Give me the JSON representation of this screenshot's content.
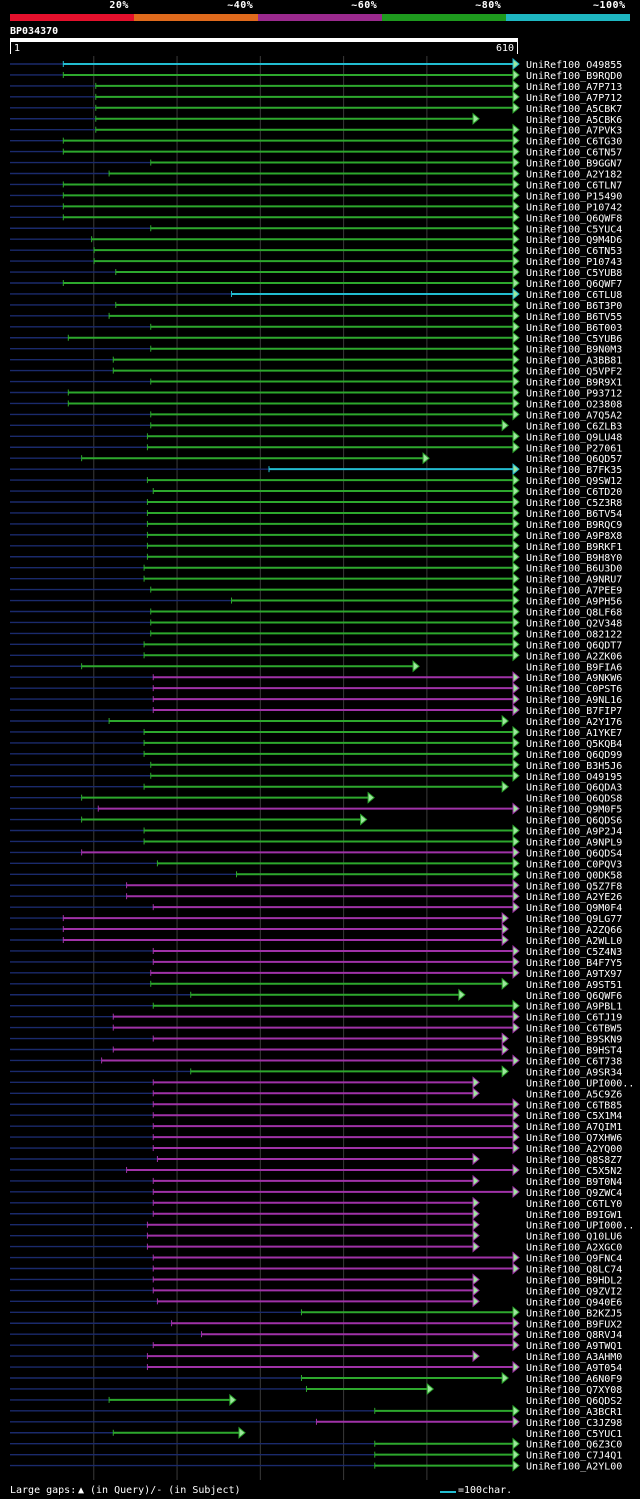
{
  "query": {
    "id": "BP034370",
    "start": "1",
    "end": "610",
    "length": 610
  },
  "legend": [
    {
      "label": "20%",
      "color": "#e4102c"
    },
    {
      "label": "~40%",
      "color": "#e06a1c"
    },
    {
      "label": "~60%",
      "color": "#9b2a8e"
    },
    {
      "label": "~80%",
      "color": "#1e9a1e"
    },
    {
      "label": "~100%",
      "color": "#1eb7c2"
    }
  ],
  "colors": {
    "cyan": "#22bcd0",
    "green": "#2da82d",
    "purple": "#a032a8",
    "navy": "#1a2a6c",
    "grid": "#3a3a3a"
  },
  "footer": {
    "gaps_label": "Large gaps:",
    "query_marker": "▲",
    "query_text": "(in Query)/- (in Subject)",
    "scale_text": "=100char."
  },
  "hits": [
    {
      "label": "UniRef100_O49855",
      "color": "cyan",
      "start": 64,
      "end": 610,
      "arrow": true
    },
    {
      "label": "UniRef100_B9RQD0",
      "color": "green",
      "start": 64,
      "end": 610,
      "arrow": true
    },
    {
      "label": "UniRef100_A7P713",
      "color": "green",
      "start": 103,
      "end": 610,
      "arrow": true
    },
    {
      "label": "UniRef100_A7P712",
      "color": "green",
      "start": 103,
      "end": 610,
      "arrow": true
    },
    {
      "label": "UniRef100_A5CBK7",
      "color": "green",
      "start": 103,
      "end": 610,
      "arrow": true
    },
    {
      "label": "UniRef100_A5CBK6",
      "color": "green",
      "start": 103,
      "end": 562,
      "arrow": true
    },
    {
      "label": "UniRef100_A7PVK3",
      "color": "green",
      "start": 103,
      "end": 610,
      "arrow": true
    },
    {
      "label": "UniRef100_C6TG30",
      "color": "green",
      "start": 64,
      "end": 610,
      "arrow": true
    },
    {
      "label": "UniRef100_C6TN57",
      "color": "green",
      "start": 64,
      "end": 610,
      "arrow": true
    },
    {
      "label": "UniRef100_B9GGN7",
      "color": "green",
      "start": 169,
      "end": 610,
      "arrow": true
    },
    {
      "label": "UniRef100_A2Y182",
      "color": "green",
      "start": 119,
      "end": 610,
      "arrow": true
    },
    {
      "label": "UniRef100_C6TLN7",
      "color": "green",
      "start": 64,
      "end": 610,
      "arrow": true
    },
    {
      "label": "UniRef100_P15490",
      "color": "green",
      "start": 64,
      "end": 610,
      "arrow": true
    },
    {
      "label": "UniRef100_P10742",
      "color": "green",
      "start": 64,
      "end": 610,
      "arrow": true
    },
    {
      "label": "UniRef100_Q6QWF8",
      "color": "green",
      "start": 64,
      "end": 610,
      "arrow": true
    },
    {
      "label": "UniRef100_C5YUC4",
      "color": "green",
      "start": 169,
      "end": 610,
      "arrow": true
    },
    {
      "label": "UniRef100_Q9M4D6",
      "color": "green",
      "start": 98,
      "end": 610,
      "arrow": true
    },
    {
      "label": "UniRef100_C6TN53",
      "color": "green",
      "start": 101,
      "end": 610,
      "arrow": true
    },
    {
      "label": "UniRef100_P10743",
      "color": "green",
      "start": 101,
      "end": 610,
      "arrow": true
    },
    {
      "label": "UniRef100_C5YUB8",
      "color": "green",
      "start": 127,
      "end": 610,
      "arrow": true
    },
    {
      "label": "UniRef100_Q6QWF7",
      "color": "green",
      "start": 64,
      "end": 610,
      "arrow": true
    },
    {
      "label": "UniRef100_C6TLU8",
      "color": "cyan",
      "start": 266,
      "end": 610,
      "arrow": true
    },
    {
      "label": "UniRef100_B6T3P0",
      "color": "green",
      "start": 127,
      "end": 610,
      "arrow": true
    },
    {
      "label": "UniRef100_B6TV55",
      "color": "green",
      "start": 119,
      "end": 610,
      "arrow": true
    },
    {
      "label": "UniRef100_B6T003",
      "color": "green",
      "start": 169,
      "end": 610,
      "arrow": true
    },
    {
      "label": "UniRef100_C5YUB6",
      "color": "green",
      "start": 70,
      "end": 610,
      "arrow": true
    },
    {
      "label": "UniRef100_B9N0M3",
      "color": "green",
      "start": 169,
      "end": 610,
      "arrow": true
    },
    {
      "label": "UniRef100_A3BB81",
      "color": "green",
      "start": 124,
      "end": 610,
      "arrow": true
    },
    {
      "label": "UniRef100_Q5VPF2",
      "color": "green",
      "start": 124,
      "end": 610,
      "arrow": true
    },
    {
      "label": "UniRef100_B9R9X1",
      "color": "green",
      "start": 169,
      "end": 610,
      "arrow": true
    },
    {
      "label": "UniRef100_P93712",
      "color": "green",
      "start": 70,
      "end": 610,
      "arrow": true
    },
    {
      "label": "UniRef100_O23808",
      "color": "green",
      "start": 70,
      "end": 610,
      "arrow": true
    },
    {
      "label": "UniRef100_A7Q5A2",
      "color": "green",
      "start": 169,
      "end": 610,
      "arrow": true
    },
    {
      "label": "UniRef100_C6ZLB3",
      "color": "green",
      "start": 169,
      "end": 597,
      "arrow": true
    },
    {
      "label": "UniRef100_Q9LU48",
      "color": "green",
      "start": 165,
      "end": 610,
      "arrow": true
    },
    {
      "label": "UniRef100_P27061",
      "color": "green",
      "start": 165,
      "end": 610,
      "arrow": true
    },
    {
      "label": "UniRef100_Q6QD57",
      "color": "green",
      "start": 86,
      "end": 502,
      "arrow": true
    },
    {
      "label": "UniRef100_B7FK35",
      "color": "cyan",
      "start": 311,
      "end": 610,
      "arrow": true
    },
    {
      "label": "UniRef100_Q9SW12",
      "color": "green",
      "start": 165,
      "end": 610,
      "arrow": true
    },
    {
      "label": "UniRef100_C6TD20",
      "color": "green",
      "start": 172,
      "end": 610,
      "arrow": true
    },
    {
      "label": "UniRef100_C5Z3R8",
      "color": "green",
      "start": 165,
      "end": 610,
      "arrow": true
    },
    {
      "label": "UniRef100_B6TV54",
      "color": "green",
      "start": 165,
      "end": 610,
      "arrow": true
    },
    {
      "label": "UniRef100_B9RQC9",
      "color": "green",
      "start": 165,
      "end": 610,
      "arrow": true
    },
    {
      "label": "UniRef100_A9P8X8",
      "color": "green",
      "start": 165,
      "end": 610,
      "arrow": true
    },
    {
      "label": "UniRef100_B9RKF1",
      "color": "green",
      "start": 165,
      "end": 610,
      "arrow": true
    },
    {
      "label": "UniRef100_B9H8Y0",
      "color": "green",
      "start": 165,
      "end": 610,
      "arrow": true
    },
    {
      "label": "UniRef100_B6U3D0",
      "color": "green",
      "start": 161,
      "end": 610,
      "arrow": true
    },
    {
      "label": "UniRef100_A9NRU7",
      "color": "green",
      "start": 161,
      "end": 610,
      "arrow": true
    },
    {
      "label": "UniRef100_A7PEE9",
      "color": "green",
      "start": 169,
      "end": 610,
      "arrow": true
    },
    {
      "label": "UniRef100_A9PH56",
      "color": "green",
      "start": 266,
      "end": 610,
      "arrow": true
    },
    {
      "label": "UniRef100_Q8LF68",
      "color": "green",
      "start": 169,
      "end": 610,
      "arrow": true
    },
    {
      "label": "UniRef100_Q2V348",
      "color": "green",
      "start": 169,
      "end": 610,
      "arrow": true
    },
    {
      "label": "UniRef100_O82122",
      "color": "green",
      "start": 169,
      "end": 610,
      "arrow": true
    },
    {
      "label": "UniRef100_Q6QDT7",
      "color": "green",
      "start": 161,
      "end": 610,
      "arrow": true
    },
    {
      "label": "UniRef100_A2ZK06",
      "color": "green",
      "start": 161,
      "end": 610,
      "arrow": true
    },
    {
      "label": "UniRef100_B9FIA6",
      "color": "green",
      "start": 86,
      "end": 490,
      "arrow": true
    },
    {
      "label": "UniRef100_A9NKW6",
      "color": "purple",
      "start": 172,
      "end": 610,
      "arrow": true
    },
    {
      "label": "UniRef100_C0PST6",
      "color": "purple",
      "start": 172,
      "end": 610,
      "arrow": true
    },
    {
      "label": "UniRef100_A9NL16",
      "color": "purple",
      "start": 172,
      "end": 610,
      "arrow": true
    },
    {
      "label": "UniRef100_B7FIP7",
      "color": "purple",
      "start": 172,
      "end": 610,
      "arrow": true
    },
    {
      "label": "UniRef100_A2Y176",
      "color": "green",
      "start": 119,
      "end": 597,
      "arrow": true
    },
    {
      "label": "UniRef100_A1YKE7",
      "color": "green",
      "start": 161,
      "end": 610,
      "arrow": true
    },
    {
      "label": "UniRef100_Q5KQB4",
      "color": "green",
      "start": 161,
      "end": 610,
      "arrow": true
    },
    {
      "label": "UniRef100_Q6QD99",
      "color": "green",
      "start": 161,
      "end": 610,
      "arrow": true
    },
    {
      "label": "UniRef100_B3H5J6",
      "color": "green",
      "start": 169,
      "end": 610,
      "arrow": true
    },
    {
      "label": "UniRef100_O49195",
      "color": "green",
      "start": 169,
      "end": 610,
      "arrow": true
    },
    {
      "label": "UniRef100_Q6QDA3",
      "color": "green",
      "start": 161,
      "end": 597,
      "arrow": true
    },
    {
      "label": "UniRef100_Q6QDS8",
      "color": "green",
      "start": 86,
      "end": 436,
      "arrow": true
    },
    {
      "label": "UniRef100_Q9M0F5",
      "color": "purple",
      "start": 106,
      "end": 610,
      "arrow": true
    },
    {
      "label": "UniRef100_Q6QDS6",
      "color": "green",
      "start": 86,
      "end": 427,
      "arrow": true
    },
    {
      "label": "UniRef100_A9P2J4",
      "color": "green",
      "start": 161,
      "end": 610,
      "arrow": true
    },
    {
      "label": "UniRef100_A9NPL9",
      "color": "green",
      "start": 161,
      "end": 610,
      "arrow": true
    },
    {
      "label": "UniRef100_Q6QDS4",
      "color": "purple",
      "start": 86,
      "end": 610,
      "arrow": true
    },
    {
      "label": "UniRef100_C0PQV3",
      "color": "green",
      "start": 177,
      "end": 610,
      "arrow": true
    },
    {
      "label": "UniRef100_Q0DK58",
      "color": "green",
      "start": 272,
      "end": 610,
      "arrow": true
    },
    {
      "label": "UniRef100_Q5Z7F8",
      "color": "purple",
      "start": 140,
      "end": 610,
      "arrow": true
    },
    {
      "label": "UniRef100_A2YE26",
      "color": "purple",
      "start": 140,
      "end": 610,
      "arrow": true
    },
    {
      "label": "UniRef100_Q9M0F4",
      "color": "purple",
      "start": 172,
      "end": 610,
      "arrow": true
    },
    {
      "label": "UniRef100_Q9LG77",
      "color": "purple",
      "start": 64,
      "end": 597,
      "arrow": true
    },
    {
      "label": "UniRef100_A2ZQ66",
      "color": "purple",
      "start": 64,
      "end": 597,
      "arrow": true
    },
    {
      "label": "UniRef100_A2WLL0",
      "color": "purple",
      "start": 64,
      "end": 597,
      "arrow": true
    },
    {
      "label": "UniRef100_C5Z4N3",
      "color": "purple",
      "start": 172,
      "end": 610,
      "arrow": true
    },
    {
      "label": "UniRef100_B4F7Y5",
      "color": "purple",
      "start": 172,
      "end": 610,
      "arrow": true
    },
    {
      "label": "UniRef100_A9TX97",
      "color": "purple",
      "start": 169,
      "end": 610,
      "arrow": true
    },
    {
      "label": "UniRef100_A9ST51",
      "color": "green",
      "start": 169,
      "end": 597,
      "arrow": true
    },
    {
      "label": "UniRef100_Q6QWF6",
      "color": "green",
      "start": 217,
      "end": 545,
      "arrow": true
    },
    {
      "label": "UniRef100_A9PBL1",
      "color": "green",
      "start": 172,
      "end": 610,
      "arrow": true
    },
    {
      "label": "UniRef100_C6TJ19",
      "color": "purple",
      "start": 124,
      "end": 610,
      "arrow": true
    },
    {
      "label": "UniRef100_C6TBW5",
      "color": "purple",
      "start": 124,
      "end": 610,
      "arrow": true
    },
    {
      "label": "UniRef100_B9SKN9",
      "color": "purple",
      "start": 172,
      "end": 597,
      "arrow": true
    },
    {
      "label": "UniRef100_B9HST4",
      "color": "purple",
      "start": 124,
      "end": 597,
      "arrow": true
    },
    {
      "label": "UniRef100_C6T738",
      "color": "purple",
      "start": 110,
      "end": 610,
      "arrow": true
    },
    {
      "label": "UniRef100_A9SR34",
      "color": "green",
      "start": 217,
      "end": 597,
      "arrow": true
    },
    {
      "label": "UniRef100_UPI000..",
      "color": "purple",
      "start": 172,
      "end": 562,
      "arrow": true
    },
    {
      "label": "UniRef100_A5C9Z6",
      "color": "purple",
      "start": 172,
      "end": 562,
      "arrow": true
    },
    {
      "label": "UniRef100_C6TB85",
      "color": "purple",
      "start": 172,
      "end": 610,
      "arrow": true
    },
    {
      "label": "UniRef100_C5X1M4",
      "color": "purple",
      "start": 172,
      "end": 610,
      "arrow": true
    },
    {
      "label": "UniRef100_A7QIM1",
      "color": "purple",
      "start": 172,
      "end": 610,
      "arrow": true
    },
    {
      "label": "UniRef100_Q7XHW6",
      "color": "purple",
      "start": 172,
      "end": 610,
      "arrow": true
    },
    {
      "label": "UniRef100_A2YQ00",
      "color": "purple",
      "start": 172,
      "end": 610,
      "arrow": true
    },
    {
      "label": "UniRef100_Q8S8Z7",
      "color": "purple",
      "start": 177,
      "end": 562,
      "arrow": true
    },
    {
      "label": "UniRef100_C5X5N2",
      "color": "purple",
      "start": 140,
      "end": 610,
      "arrow": true
    },
    {
      "label": "UniRef100_B9T0N4",
      "color": "purple",
      "start": 172,
      "end": 562,
      "arrow": true
    },
    {
      "label": "UniRef100_Q9ZWC4",
      "color": "purple",
      "start": 172,
      "end": 610,
      "arrow": true
    },
    {
      "label": "UniRef100_C6TLY0",
      "color": "purple",
      "start": 172,
      "end": 562,
      "arrow": true
    },
    {
      "label": "UniRef100_B9IGW1",
      "color": "purple",
      "start": 172,
      "end": 562,
      "arrow": true
    },
    {
      "label": "UniRef100_UPI000..",
      "color": "purple",
      "start": 165,
      "end": 562,
      "arrow": true
    },
    {
      "label": "UniRef100_Q10LU6",
      "color": "purple",
      "start": 165,
      "end": 562,
      "arrow": true
    },
    {
      "label": "UniRef100_A2XGC0",
      "color": "purple",
      "start": 165,
      "end": 562,
      "arrow": true
    },
    {
      "label": "UniRef100_Q9FNC4",
      "color": "purple",
      "start": 172,
      "end": 610,
      "arrow": true
    },
    {
      "label": "UniRef100_Q8LC74",
      "color": "purple",
      "start": 172,
      "end": 610,
      "arrow": true
    },
    {
      "label": "UniRef100_B9HDL2",
      "color": "purple",
      "start": 172,
      "end": 562,
      "arrow": true
    },
    {
      "label": "UniRef100_Q9ZVI2",
      "color": "purple",
      "start": 172,
      "end": 562,
      "arrow": true
    },
    {
      "label": "UniRef100_Q940E6",
      "color": "purple",
      "start": 177,
      "end": 562,
      "arrow": true
    },
    {
      "label": "UniRef100_B2KZJ5",
      "color": "green",
      "start": 350,
      "end": 610,
      "arrow": true
    },
    {
      "label": "UniRef100_B9FUX2",
      "color": "purple",
      "start": 194,
      "end": 610,
      "arrow": true
    },
    {
      "label": "UniRef100_Q8RVJ4",
      "color": "purple",
      "start": 230,
      "end": 610,
      "arrow": true
    },
    {
      "label": "UniRef100_A9TWQ1",
      "color": "purple",
      "start": 172,
      "end": 610,
      "arrow": true
    },
    {
      "label": "UniRef100_A3AHM0",
      "color": "purple",
      "start": 165,
      "end": 562,
      "arrow": true
    },
    {
      "label": "UniRef100_A9T054",
      "color": "purple",
      "start": 165,
      "end": 610,
      "arrow": true
    },
    {
      "label": "UniRef100_A6N0F9",
      "color": "green",
      "start": 350,
      "end": 597,
      "arrow": true
    },
    {
      "label": "UniRef100_Q7XY08",
      "color": "green",
      "start": 356,
      "end": 507,
      "arrow": true
    },
    {
      "label": "UniRef100_Q6QDS2",
      "color": "green",
      "start": 119,
      "end": 270,
      "arrow": true
    },
    {
      "label": "UniRef100_A3BCR1",
      "color": "green",
      "start": 438,
      "end": 610,
      "arrow": true
    },
    {
      "label": "UniRef100_C3JZ98",
      "color": "purple",
      "start": 368,
      "end": 610,
      "arrow": true
    },
    {
      "label": "UniRef100_C5YUC1",
      "color": "green",
      "start": 124,
      "end": 281,
      "arrow": true
    },
    {
      "label": "UniRef100_Q6Z3C0",
      "color": "green",
      "start": 438,
      "end": 610,
      "arrow": true
    },
    {
      "label": "UniRef100_C7J4Q1",
      "color": "green",
      "start": 438,
      "end": 610,
      "arrow": true
    },
    {
      "label": "UniRef100_A2YL00",
      "color": "green",
      "start": 438,
      "end": 610,
      "arrow": true
    }
  ]
}
